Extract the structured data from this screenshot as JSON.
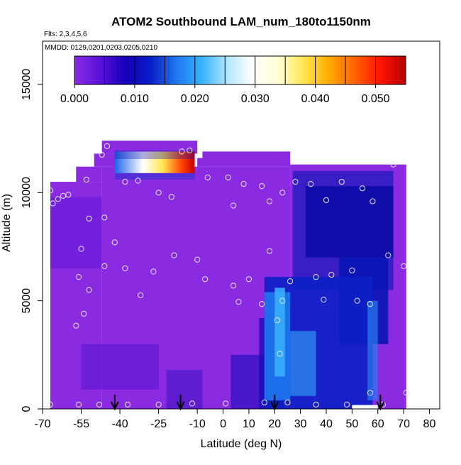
{
  "chart_data": {
    "type": "heatmap",
    "title": "ATOM2 Southbound LAM_num_180to1150nm",
    "subtitle_flights": "Flts: 2,3,4,5,6",
    "subtitle_dates": "MMDD: 0129,0201,0203,0205,0210",
    "xlabel": "Latitude (deg N)",
    "ylabel": "Altitude (m)",
    "xlim": [
      -70,
      84
    ],
    "ylim": [
      0,
      17000
    ],
    "x_ticks": [
      -70,
      -55,
      -40,
      -25,
      -10,
      0,
      10,
      20,
      30,
      40,
      50,
      60,
      70,
      80
    ],
    "x_tick_labels": [
      "-70",
      "-55",
      "-40",
      "-25",
      "-10",
      "0",
      "10",
      "20",
      "30",
      "40",
      "50",
      "60",
      "70",
      "80"
    ],
    "y_ticks": [
      0,
      5000,
      10000,
      15000
    ],
    "y_tick_labels": [
      "0",
      "5000",
      "10000",
      "15000"
    ],
    "colorbar": {
      "min": 0.0,
      "max": 0.055,
      "tick_values": [
        0.0,
        0.01,
        0.02,
        0.03,
        0.04,
        0.05
      ],
      "tick_labels": [
        "0.000",
        "0.010",
        "0.020",
        "0.030",
        "0.040",
        "0.050"
      ],
      "colors": [
        "#8a2be2",
        "#5a10d8",
        "#1400b8",
        "#0a1ec8",
        "#1e78f0",
        "#38b4ff",
        "#b4e6ff",
        "#ffffff",
        "#ffffd2",
        "#ffe650",
        "#ffaa00",
        "#ff6400",
        "#ff1400",
        "#b40000"
      ]
    },
    "arrows_lat": [
      -42,
      -16.5,
      20,
      61
    ],
    "sample_points": [
      {
        "lat": -67,
        "alt": 10100
      },
      {
        "lat": -66,
        "alt": 9500
      },
      {
        "lat": -64,
        "alt": 9700
      },
      {
        "lat": -62,
        "alt": 9850
      },
      {
        "lat": -60,
        "alt": 9900
      },
      {
        "lat": -53,
        "alt": 10600
      },
      {
        "lat": -47,
        "alt": 11750
      },
      {
        "lat": -45,
        "alt": 12150
      },
      {
        "lat": -38,
        "alt": 10500
      },
      {
        "lat": -33,
        "alt": 10550
      },
      {
        "lat": -25,
        "alt": 10000
      },
      {
        "lat": -20,
        "alt": 9800
      },
      {
        "lat": -16,
        "alt": 11900
      },
      {
        "lat": -13,
        "alt": 11950
      },
      {
        "lat": -6,
        "alt": 10700
      },
      {
        "lat": 2,
        "alt": 10700
      },
      {
        "lat": 4,
        "alt": 9400
      },
      {
        "lat": 8,
        "alt": 10400
      },
      {
        "lat": 15,
        "alt": 10300
      },
      {
        "lat": 18,
        "alt": 9600
      },
      {
        "lat": 23,
        "alt": 10000
      },
      {
        "lat": 28,
        "alt": 10500
      },
      {
        "lat": 34,
        "alt": 10400
      },
      {
        "lat": 40,
        "alt": 9650
      },
      {
        "lat": 46,
        "alt": 10500
      },
      {
        "lat": 54,
        "alt": 10200
      },
      {
        "lat": 58,
        "alt": 9600
      },
      {
        "lat": 66,
        "alt": 11300
      },
      {
        "lat": -52,
        "alt": 8800
      },
      {
        "lat": -46,
        "alt": 8850
      },
      {
        "lat": -42,
        "alt": 7700
      },
      {
        "lat": -55,
        "alt": 7400
      },
      {
        "lat": -19,
        "alt": 7100
      },
      {
        "lat": -10,
        "alt": 6900
      },
      {
        "lat": 18,
        "alt": 7300
      },
      {
        "lat": 64,
        "alt": 7100
      },
      {
        "lat": -56,
        "alt": 6100
      },
      {
        "lat": -46,
        "alt": 6600
      },
      {
        "lat": -38,
        "alt": 6500
      },
      {
        "lat": -27,
        "alt": 6350
      },
      {
        "lat": -7,
        "alt": 6000
      },
      {
        "lat": 4,
        "alt": 5700
      },
      {
        "lat": 10,
        "alt": 6000
      },
      {
        "lat": 26,
        "alt": 5900
      },
      {
        "lat": 36,
        "alt": 6100
      },
      {
        "lat": 42,
        "alt": 6200
      },
      {
        "lat": 50,
        "alt": 6400
      },
      {
        "lat": 70,
        "alt": 6600
      },
      {
        "lat": -52,
        "alt": 5500
      },
      {
        "lat": -32,
        "alt": 5250
      },
      {
        "lat": 6,
        "alt": 4950
      },
      {
        "lat": 15,
        "alt": 4850
      },
      {
        "lat": 23,
        "alt": 5000
      },
      {
        "lat": 39,
        "alt": 5050
      },
      {
        "lat": 52,
        "alt": 5000
      },
      {
        "lat": 57,
        "alt": 4850
      },
      {
        "lat": -54,
        "alt": 4400
      },
      {
        "lat": -57,
        "alt": 3850
      },
      {
        "lat": 21,
        "alt": 4100
      },
      {
        "lat": 22,
        "alt": 2550
      },
      {
        "lat": 57,
        "alt": 750
      },
      {
        "lat": 71,
        "alt": 750
      },
      {
        "lat": -67,
        "alt": 200
      },
      {
        "lat": -56,
        "alt": 200
      },
      {
        "lat": -48,
        "alt": 200
      },
      {
        "lat": -37,
        "alt": 200
      },
      {
        "lat": -25,
        "alt": 200
      },
      {
        "lat": -12,
        "alt": 250
      },
      {
        "lat": 1,
        "alt": 250
      },
      {
        "lat": 16,
        "alt": 300
      },
      {
        "lat": 25,
        "alt": 300
      },
      {
        "lat": 36,
        "alt": 200
      },
      {
        "lat": 48,
        "alt": 200
      },
      {
        "lat": 62,
        "alt": 200
      }
    ]
  }
}
